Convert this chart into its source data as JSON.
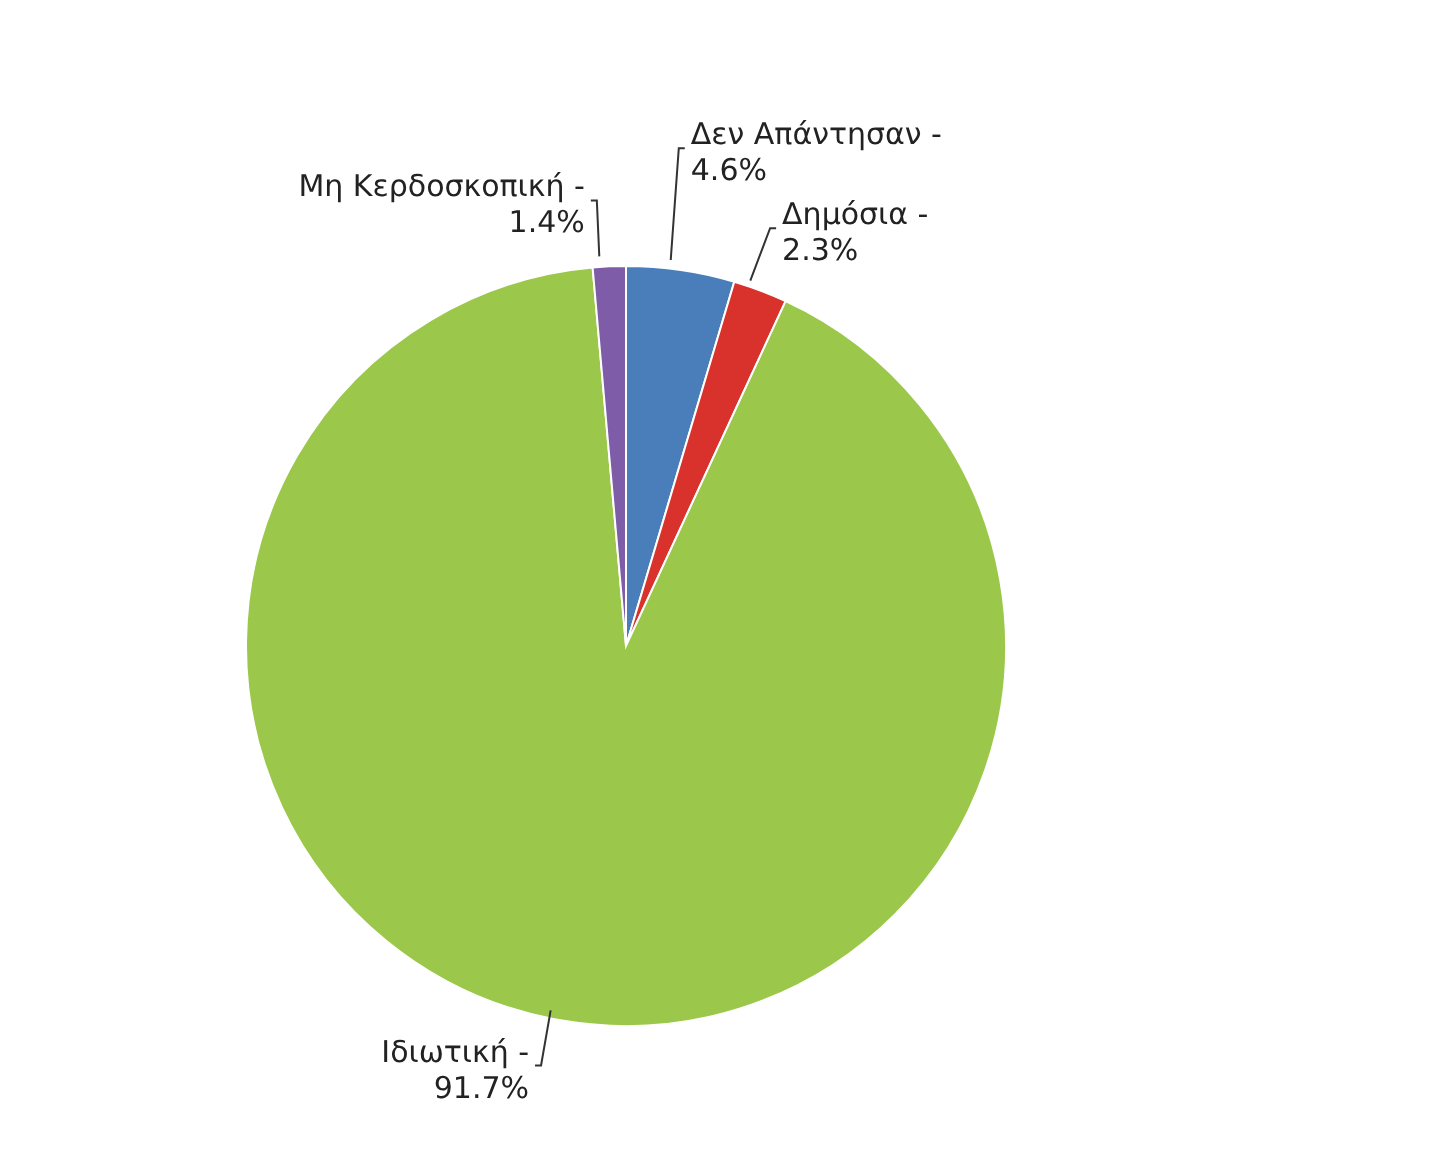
{
  "chart_data": {
    "type": "pie",
    "categories": [
      "Δεν Απάντησαν -",
      "Δημόσια -",
      "Ιδιωτική -",
      "Μη Κερδοσκοπική -"
    ],
    "values": [
      4.6,
      2.3,
      91.7,
      1.4
    ],
    "colors": [
      "#4a7ebb",
      "#d9312b",
      "#9bc84a",
      "#7e5ca8"
    ],
    "value_labels": [
      "4.6%",
      "2.3%",
      "91.7%",
      "1.4%"
    ],
    "legend": false
  }
}
